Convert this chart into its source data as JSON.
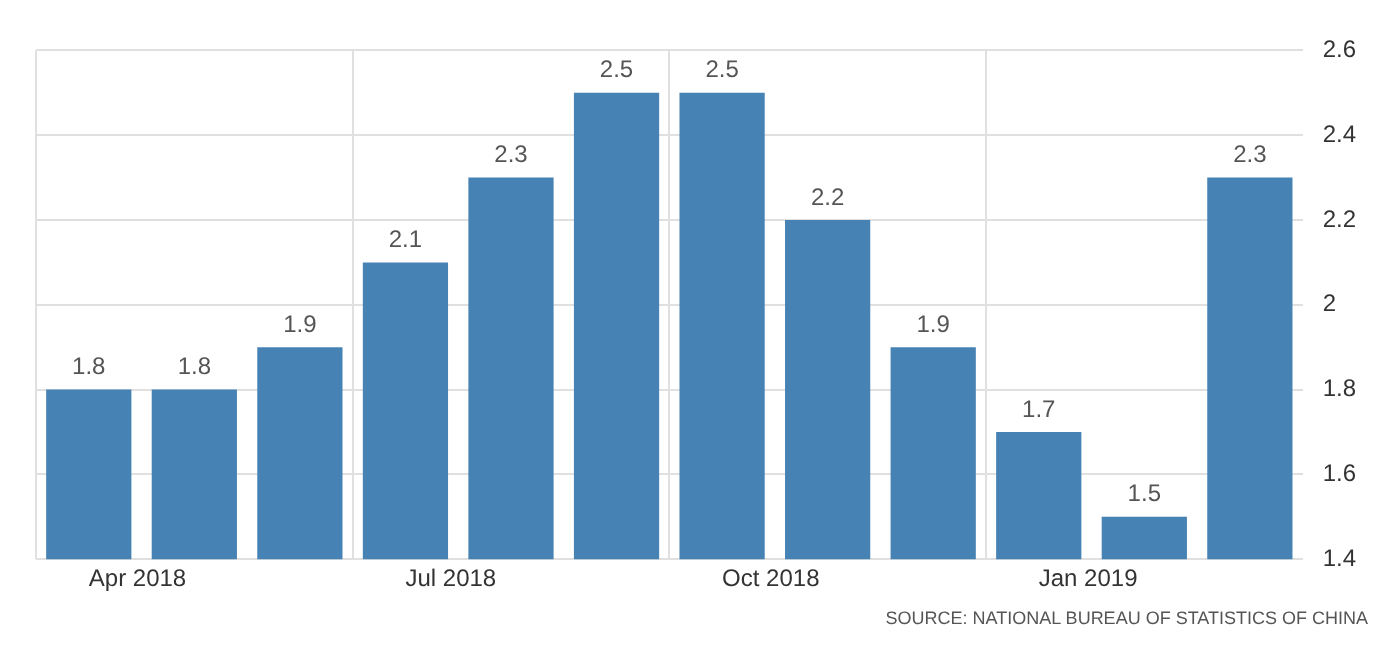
{
  "chart_data": {
    "type": "bar",
    "categories": [
      "Apr 2018",
      null,
      null,
      "Jul 2018",
      null,
      null,
      "Oct 2018",
      null,
      null,
      "Jan 2019",
      null,
      null
    ],
    "values": [
      1.8,
      1.8,
      1.9,
      2.1,
      2.3,
      2.5,
      2.5,
      2.2,
      1.9,
      1.7,
      1.5,
      2.3
    ],
    "color": "#4682b4",
    "ylim": [
      1.4,
      2.6
    ],
    "yticks": [
      1.4,
      1.6,
      1.8,
      2,
      2.2,
      2.4,
      2.6
    ],
    "grid": true,
    "data_labels": true,
    "annotations": [
      "SOURCE: NATIONAL BUREAU OF STATISTICS OF CHINA"
    ]
  }
}
